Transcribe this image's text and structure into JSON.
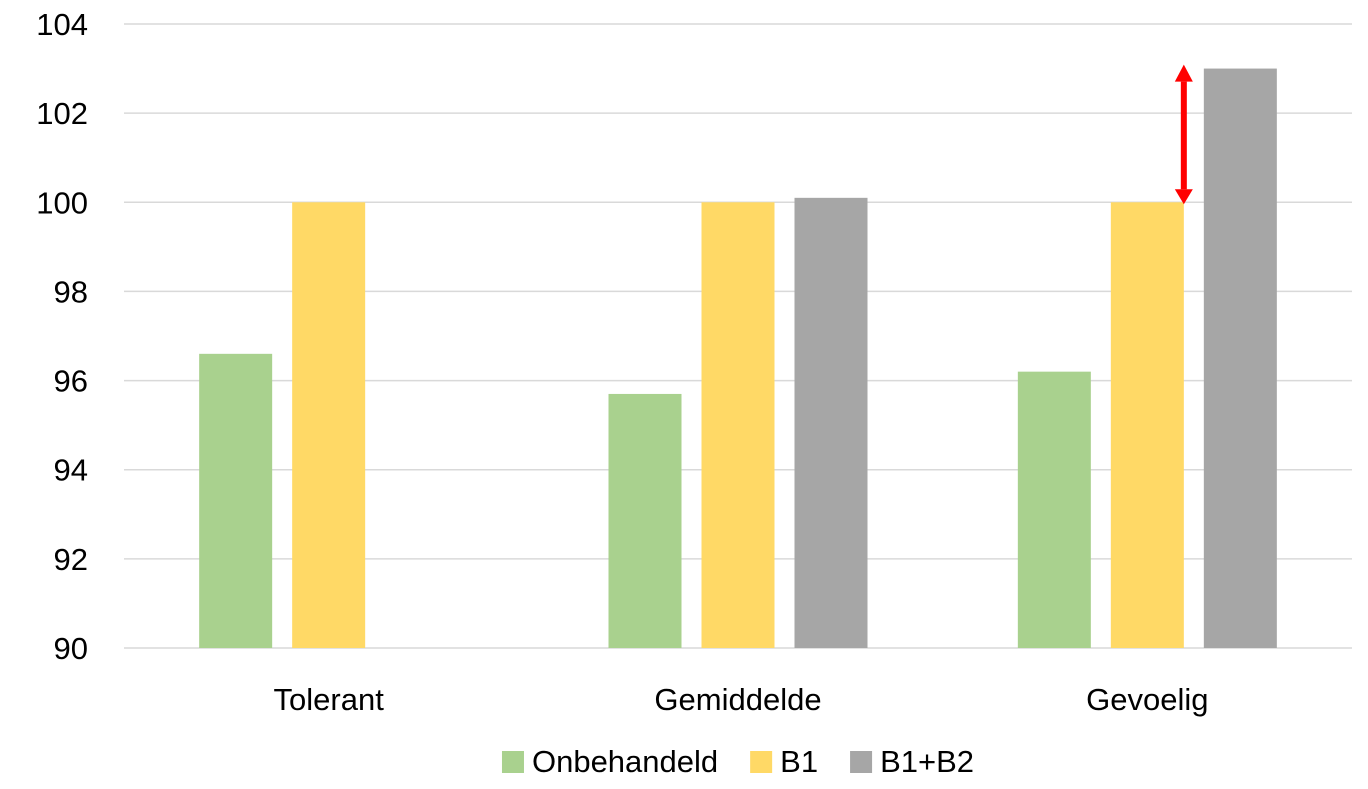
{
  "chart_data": {
    "type": "bar",
    "categories": [
      "Tolerant",
      "Gemiddelde",
      "Gevoelig"
    ],
    "series": [
      {
        "name": "Onbehandeld",
        "color": "#a9d18e",
        "values": [
          96.6,
          95.7,
          96.2
        ]
      },
      {
        "name": "B1",
        "color": "#ffd966",
        "values": [
          100.0,
          100.0,
          100.0
        ]
      },
      {
        "name": "B1+B2",
        "color": "#a6a6a6",
        "values": [
          null,
          100.1,
          103.0
        ]
      }
    ],
    "yticks": [
      "90",
      "92",
      "94",
      "96",
      "98",
      "100",
      "102",
      "104"
    ],
    "ylim": [
      90,
      104
    ],
    "grid": true,
    "legend_position": "bottom",
    "annotation": {
      "type": "double-arrow",
      "color": "#ff0000",
      "category": "Gevoelig",
      "from_value": 100.0,
      "to_value": 103.0
    }
  }
}
